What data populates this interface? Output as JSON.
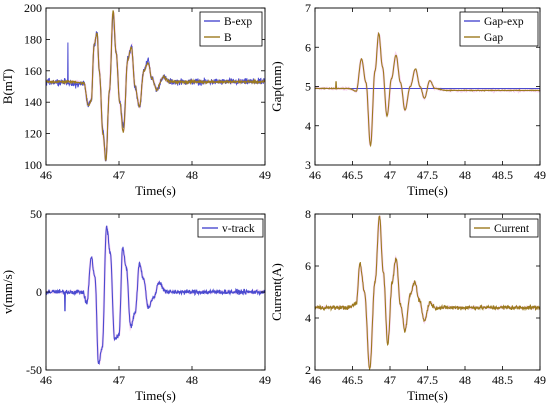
{
  "colors": {
    "blue": "#4b4bd0",
    "gold": "#9c7a1e",
    "pink_ghost": "#f3b7ea",
    "grid": "#000000"
  },
  "chart_data": [
    {
      "type": "line",
      "xlabel": "Time(s)",
      "ylabel": "B(mT)",
      "xlim": [
        46,
        49
      ],
      "ylim": [
        100,
        200
      ],
      "xticks": [
        46,
        47,
        48,
        49
      ],
      "xtick_labels": [
        "46",
        "47",
        "48",
        "49"
      ],
      "yticks": [
        100,
        120,
        140,
        160,
        180,
        200
      ],
      "ytick_labels": [
        "100",
        "120",
        "140",
        "160",
        "180",
        "200"
      ],
      "legend": "top-right",
      "base": 153,
      "events": [
        {
          "t": 46.3,
          "v": 178,
          "series": 0
        },
        {
          "t": 46.4,
          "v": 152,
          "series": 0
        }
      ],
      "series": [
        {
          "name": "B-exp",
          "color": "blue",
          "noise": 3,
          "waveform": [
            [
              46.0,
              153
            ],
            [
              46.25,
              153
            ],
            [
              46.4,
              151
            ],
            [
              46.52,
              152
            ],
            [
              46.58,
              138
            ],
            [
              46.62,
              141
            ],
            [
              46.66,
              176
            ],
            [
              46.7,
              185
            ],
            [
              46.73,
              160
            ],
            [
              46.78,
              122
            ],
            [
              46.82,
              104
            ],
            [
              46.87,
              148
            ],
            [
              46.92,
              195
            ],
            [
              46.96,
              172
            ],
            [
              47.01,
              140
            ],
            [
              47.06,
              124
            ],
            [
              47.12,
              167
            ],
            [
              47.17,
              176
            ],
            [
              47.22,
              150
            ],
            [
              47.28,
              137
            ],
            [
              47.34,
              160
            ],
            [
              47.4,
              167
            ],
            [
              47.45,
              155
            ],
            [
              47.52,
              148
            ],
            [
              47.6,
              156
            ],
            [
              47.7,
              153
            ],
            [
              49.0,
              153
            ]
          ]
        },
        {
          "name": "B",
          "color": "gold",
          "noise": 1.2,
          "waveform": [
            [
              46.0,
              153
            ],
            [
              46.4,
              153
            ],
            [
              46.52,
              152
            ],
            [
              46.58,
              138
            ],
            [
              46.62,
              141
            ],
            [
              46.66,
              177
            ],
            [
              46.7,
              184
            ],
            [
              46.73,
              160
            ],
            [
              46.78,
              120
            ],
            [
              46.82,
              103
            ],
            [
              46.87,
              148
            ],
            [
              46.92,
              198
            ],
            [
              46.96,
              172
            ],
            [
              47.01,
              140
            ],
            [
              47.06,
              121
            ],
            [
              47.12,
              167
            ],
            [
              47.17,
              175
            ],
            [
              47.22,
              150
            ],
            [
              47.28,
              137
            ],
            [
              47.34,
              160
            ],
            [
              47.4,
              165
            ],
            [
              47.45,
              155
            ],
            [
              47.52,
              148
            ],
            [
              47.6,
              156
            ],
            [
              47.7,
              153
            ],
            [
              49.0,
              153
            ]
          ]
        }
      ]
    },
    {
      "type": "line",
      "xlabel": "Time(s)",
      "ylabel": "Gap(mm)",
      "xlim": [
        46,
        49
      ],
      "ylim": [
        3,
        7
      ],
      "xticks": [
        46,
        46.5,
        47,
        47.5,
        48,
        48.5,
        49
      ],
      "xtick_labels": [
        "46",
        "46.5",
        "47",
        "47.5",
        "48",
        "48.5",
        "49"
      ],
      "yticks": [
        3,
        4,
        5,
        6,
        7
      ],
      "ytick_labels": [
        "3",
        "4",
        "5",
        "6",
        "7"
      ],
      "legend": "top-right",
      "base": 4.95,
      "events": [
        {
          "t": 46.28,
          "v": 5.12,
          "series": 1
        }
      ],
      "series": [
        {
          "name": "Gap-exp",
          "color": "blue",
          "noise": 0,
          "waveform": [
            [
              46.0,
              4.95
            ],
            [
              49.0,
              4.95
            ]
          ]
        },
        {
          "name": "Gap",
          "color": "gold",
          "noise": 0.012,
          "waveform": [
            [
              46.0,
              4.95
            ],
            [
              46.45,
              4.95
            ],
            [
              46.55,
              4.88
            ],
            [
              46.62,
              5.7
            ],
            [
              46.68,
              5.1
            ],
            [
              46.74,
              3.5
            ],
            [
              46.8,
              5.4
            ],
            [
              46.85,
              6.35
            ],
            [
              46.9,
              5.5
            ],
            [
              46.96,
              4.25
            ],
            [
              47.02,
              5.2
            ],
            [
              47.08,
              5.8
            ],
            [
              47.14,
              5.1
            ],
            [
              47.2,
              4.4
            ],
            [
              47.27,
              5.0
            ],
            [
              47.34,
              5.45
            ],
            [
              47.4,
              5.0
            ],
            [
              47.46,
              4.7
            ],
            [
              47.53,
              5.15
            ],
            [
              47.6,
              4.95
            ],
            [
              47.75,
              4.9
            ],
            [
              49.0,
              4.9
            ]
          ]
        }
      ]
    },
    {
      "type": "line",
      "xlabel": "Time(s)",
      "ylabel": "v(mm/s)",
      "xlim": [
        46,
        49
      ],
      "ylim": [
        -50,
        50
      ],
      "xticks": [
        46,
        47,
        48,
        49
      ],
      "xtick_labels": [
        "46",
        "47",
        "48",
        "49"
      ],
      "yticks": [
        -50,
        0,
        50
      ],
      "ytick_labels": [
        "-50",
        "0",
        "50"
      ],
      "legend": "top-right",
      "base": 0,
      "events": [
        {
          "t": 46.26,
          "v": -12,
          "series": 0
        }
      ],
      "series": [
        {
          "name": "v-track",
          "color": "blue",
          "noise": 2.2,
          "waveform": [
            [
              46.0,
              0
            ],
            [
              46.5,
              0
            ],
            [
              46.56,
              -7
            ],
            [
              46.62,
              22
            ],
            [
              46.67,
              10
            ],
            [
              46.72,
              -46
            ],
            [
              46.77,
              -36
            ],
            [
              46.83,
              42
            ],
            [
              46.88,
              25
            ],
            [
              46.94,
              -30
            ],
            [
              47.0,
              -28
            ],
            [
              47.05,
              28
            ],
            [
              47.1,
              16
            ],
            [
              47.16,
              -22
            ],
            [
              47.22,
              -14
            ],
            [
              47.28,
              18
            ],
            [
              47.34,
              8
            ],
            [
              47.4,
              -10
            ],
            [
              47.47,
              -4
            ],
            [
              47.55,
              6
            ],
            [
              47.65,
              0
            ],
            [
              49.0,
              0
            ]
          ]
        }
      ]
    },
    {
      "type": "line",
      "xlabel": "Time(s)",
      "ylabel": "Current(A)",
      "xlim": [
        46,
        49
      ],
      "ylim": [
        2,
        8
      ],
      "xticks": [
        46,
        46.5,
        47,
        47.5,
        48,
        48.5,
        49
      ],
      "xtick_labels": [
        "46",
        "46.5",
        "47",
        "47.5",
        "48",
        "48.5",
        "49"
      ],
      "yticks": [
        2,
        4,
        6,
        8
      ],
      "ytick_labels": [
        "2",
        "4",
        "6",
        "8"
      ],
      "legend": "top-right",
      "base": 4.4,
      "events": [],
      "series": [
        {
          "name": "Current",
          "color": "gold",
          "noise": 0.12,
          "waveform": [
            [
              46.0,
              4.4
            ],
            [
              46.45,
              4.4
            ],
            [
              46.55,
              4.55
            ],
            [
              46.6,
              6.1
            ],
            [
              46.66,
              5.0
            ],
            [
              46.73,
              2.05
            ],
            [
              46.8,
              5.4
            ],
            [
              46.86,
              7.9
            ],
            [
              46.91,
              5.8
            ],
            [
              46.97,
              3.0
            ],
            [
              47.03,
              5.4
            ],
            [
              47.08,
              6.3
            ],
            [
              47.14,
              4.5
            ],
            [
              47.2,
              3.5
            ],
            [
              47.27,
              4.9
            ],
            [
              47.33,
              5.4
            ],
            [
              47.39,
              4.7
            ],
            [
              47.46,
              3.9
            ],
            [
              47.53,
              4.6
            ],
            [
              47.6,
              4.4
            ],
            [
              49.0,
              4.4
            ]
          ]
        }
      ]
    }
  ]
}
